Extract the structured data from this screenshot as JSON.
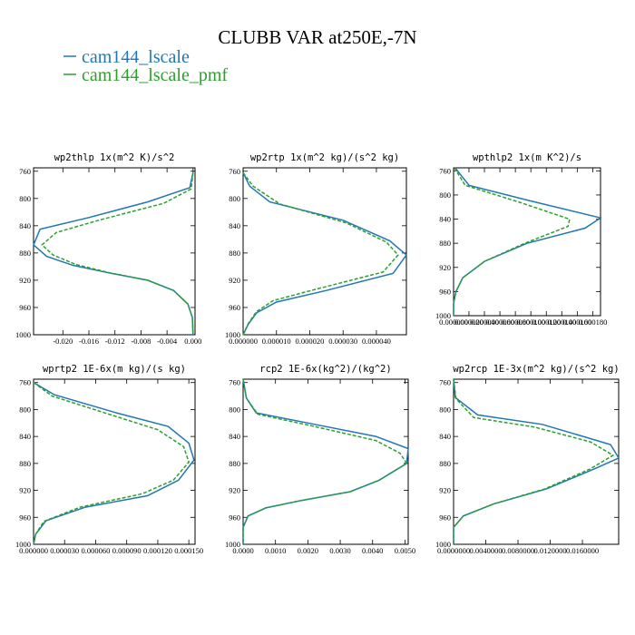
{
  "figure": {
    "title": "CLUBB VAR at250E,-7N",
    "legend": [
      {
        "name": "cam144_lscale",
        "color": "#1f77b4",
        "dash": "solid"
      },
      {
        "name": "cam144_lscale_pmf",
        "color": "#2ca02c",
        "dash": "dashed"
      }
    ]
  },
  "chart_data": [
    {
      "type": "line",
      "title": "wp2thlp  1x(m^2 K)/s^2",
      "y_levels": [
        760,
        800,
        840,
        880,
        920,
        960,
        1000
      ],
      "ylim": [
        1000,
        755
      ],
      "xlim": [
        -0.0245,
        0.0003
      ],
      "xticks": [
        -0.02,
        -0.016,
        -0.012,
        -0.008,
        -0.004,
        0.0
      ],
      "xtick_labels": [
        "-0.020",
        "-0.016",
        "-0.012",
        "-0.008",
        "-0.004",
        "0.000"
      ],
      "yticks": [
        760,
        800,
        840,
        880,
        920,
        960,
        1000
      ],
      "series": [
        {
          "name": "cam144_lscale",
          "color": "#1f77b4",
          "dash": "solid",
          "points": [
            [
              0.0,
              762
            ],
            [
              -0.0005,
              784
            ],
            [
              -0.007,
              805
            ],
            [
              -0.016,
              828
            ],
            [
              -0.0235,
              845
            ],
            [
              -0.0245,
              868
            ],
            [
              -0.0225,
              885
            ],
            [
              -0.0185,
              898
            ],
            [
              -0.013,
              909
            ],
            [
              -0.007,
              920
            ],
            [
              -0.003,
              935
            ],
            [
              -0.0008,
              955
            ],
            [
              -0.0001,
              975
            ],
            [
              0.0,
              1000
            ]
          ]
        },
        {
          "name": "cam144_lscale_pmf",
          "color": "#2ca02c",
          "dash": "dashed",
          "points": [
            [
              0.0,
              762
            ],
            [
              -0.0003,
              786
            ],
            [
              -0.0045,
              807
            ],
            [
              -0.0145,
              832
            ],
            [
              -0.021,
              850
            ],
            [
              -0.0232,
              868
            ],
            [
              -0.0215,
              883
            ],
            [
              -0.018,
              897
            ],
            [
              -0.0128,
              909
            ],
            [
              -0.007,
              920
            ],
            [
              -0.003,
              935
            ],
            [
              -0.0008,
              955
            ],
            [
              -0.0001,
              975
            ],
            [
              0.0,
              1000
            ]
          ]
        }
      ]
    },
    {
      "type": "line",
      "title": "wp2rtp  1x(m^2 kg)/(s^2 kg)",
      "y_levels": [
        760,
        800,
        840,
        880,
        920,
        960,
        1000
      ],
      "ylim": [
        1000,
        755
      ],
      "xlim": [
        0.0,
        4.9e-05
      ],
      "xticks": [
        0.0,
        1e-05,
        2e-05,
        3e-05,
        4e-05
      ],
      "xtick_labels": [
        "0.000000",
        "0.000010",
        "0.000020",
        "0.000030",
        "0.000040"
      ],
      "yticks": [
        760,
        800,
        840,
        880,
        920,
        960,
        1000
      ],
      "series": [
        {
          "name": "cam144_lscale",
          "color": "#1f77b4",
          "dash": "solid",
          "points": [
            [
              0.0,
              762
            ],
            [
              2e-06,
              782
            ],
            [
              8e-06,
              805
            ],
            [
              3e-05,
              832
            ],
            [
              4.4e-05,
              862
            ],
            [
              4.9e-05,
              883
            ],
            [
              4.5e-05,
              910
            ],
            [
              2.5e-05,
              935
            ],
            [
              1e-05,
              952
            ],
            [
              4e-06,
              968
            ],
            [
              1.5e-06,
              985
            ],
            [
              0.0,
              1000
            ]
          ]
        },
        {
          "name": "cam144_lscale_pmf",
          "color": "#2ca02c",
          "dash": "dashed",
          "points": [
            [
              0.0,
              762
            ],
            [
              3e-06,
              782
            ],
            [
              1.1e-05,
              808
            ],
            [
              3.1e-05,
              836
            ],
            [
              4.3e-05,
              864
            ],
            [
              4.65e-05,
              883
            ],
            [
              4.2e-05,
              908
            ],
            [
              2.2e-05,
              933
            ],
            [
              9e-06,
              950
            ],
            [
              4e-06,
              966
            ],
            [
              1.5e-06,
              984
            ],
            [
              0.0,
              1000
            ]
          ]
        }
      ]
    },
    {
      "type": "line",
      "title": "wpthlp2  1x(m K^2)/s",
      "y_levels": [
        760,
        800,
        840,
        880,
        920,
        960,
        1000
      ],
      "ylim": [
        1000,
        755
      ],
      "xlim": [
        0.0,
        0.00019
      ],
      "xticks": [
        0.0,
        1.99e-05,
        3.99e-05,
        5.99e-05,
        7.99e-05,
        9.99e-05,
        0.0001199,
        0.0001399,
        0.0001599,
        0.0001799
      ],
      "xtick_labels": [
        "0.000000",
        "0.000020",
        "0.000040",
        "0.000060",
        "0.000080",
        "0.000100",
        "0.000120",
        "0.000140",
        "0.000160",
        "0.000180"
      ],
      "yticks": [
        760,
        800,
        840,
        880,
        920,
        960,
        1000
      ],
      "series": [
        {
          "name": "cam144_lscale",
          "color": "#1f77b4",
          "dash": "solid",
          "points": [
            [
              2e-06,
              755
            ],
            [
              2e-05,
              784
            ],
            [
              0.0001,
              810
            ],
            [
              0.00019,
              838
            ],
            [
              0.00017,
              855
            ],
            [
              9.5e-05,
              880
            ],
            [
              4e-05,
              910
            ],
            [
              1.2e-05,
              937
            ],
            [
              3e-06,
              960
            ],
            [
              0.0,
              980
            ],
            [
              0.0,
              1000
            ]
          ]
        },
        {
          "name": "cam144_lscale_pmf",
          "color": "#2ca02c",
          "dash": "dashed",
          "points": [
            [
              1e-06,
              755
            ],
            [
              1.5e-05,
              784
            ],
            [
              8.5e-05,
              812
            ],
            [
              0.00015,
              840
            ],
            [
              0.000148,
              852
            ],
            [
              9.2e-05,
              880
            ],
            [
              4e-05,
              910
            ],
            [
              1.2e-05,
              937
            ],
            [
              3e-06,
              960
            ],
            [
              0.0,
              980
            ],
            [
              0.0,
              1000
            ]
          ]
        }
      ]
    },
    {
      "type": "line",
      "title": "wprtp2  1E-6x(m kg)/(s kg)",
      "y_levels": [
        760,
        800,
        840,
        880,
        920,
        960,
        1000
      ],
      "ylim": [
        1000,
        755
      ],
      "xlim": [
        0.0,
        0.000156
      ],
      "xticks": [
        0.0,
        2.99999e-05,
        5.99999e-05,
        8.99999e-05,
        0.0001199999,
        0.0001499999
      ],
      "xtick_labels": [
        "0.000000",
        "0.000030",
        "0.000060",
        "0.000090",
        "0.000120",
        "0.000150"
      ],
      "yticks": [
        760,
        800,
        840,
        880,
        920,
        960,
        1000
      ],
      "series": [
        {
          "name": "cam144_lscale",
          "color": "#1f77b4",
          "dash": "solid",
          "points": [
            [
              0.0,
              760
            ],
            [
              2e-05,
              778
            ],
            [
              8e-05,
              805
            ],
            [
              0.00013,
              825
            ],
            [
              0.00015,
              850
            ],
            [
              0.000155,
              875
            ],
            [
              0.00014,
              905
            ],
            [
              0.00011,
              928
            ],
            [
              5e-05,
              945
            ],
            [
              1.2e-05,
              965
            ],
            [
              2e-06,
              985
            ],
            [
              0.0,
              1000
            ]
          ]
        },
        {
          "name": "cam144_lscale_pmf",
          "color": "#2ca02c",
          "dash": "dashed",
          "points": [
            [
              0.0,
              760
            ],
            [
              1.8e-05,
              780
            ],
            [
              7.5e-05,
              808
            ],
            [
              0.00012,
              830
            ],
            [
              0.000145,
              855
            ],
            [
              0.00015,
              878
            ],
            [
              0.000135,
              905
            ],
            [
              0.000105,
              925
            ],
            [
              4.5e-05,
              945
            ],
            [
              1e-05,
              966
            ],
            [
              2e-06,
              985
            ],
            [
              0.0,
              1000
            ]
          ]
        }
      ]
    },
    {
      "type": "line",
      "title": "rcp2  1E-6x(kg^2)/(kg^2)",
      "y_levels": [
        760,
        800,
        840,
        880,
        920,
        960,
        1000
      ],
      "ylim": [
        1000,
        755
      ],
      "xlim": [
        0.0,
        0.0051
      ],
      "xticks": [
        0.0,
        0.001,
        0.002,
        0.003,
        0.004,
        0.005
      ],
      "xtick_labels": [
        "0.0000",
        "0.0010",
        "0.0020",
        "0.0030",
        "0.0040",
        "0.0050"
      ],
      "yticks": [
        760,
        800,
        840,
        880,
        920,
        960,
        1000
      ],
      "series": [
        {
          "name": "cam144_lscale",
          "color": "#1f77b4",
          "dash": "solid",
          "points": [
            [
              0.0,
              755
            ],
            [
              0.0001,
              783
            ],
            [
              0.0004,
              805
            ],
            [
              0.002,
              820
            ],
            [
              0.0041,
              840
            ],
            [
              0.0051,
              858
            ],
            [
              0.00505,
              880
            ],
            [
              0.0042,
              905
            ],
            [
              0.0033,
              922
            ],
            [
              0.0018,
              935
            ],
            [
              0.0007,
              946
            ],
            [
              0.00015,
              958
            ],
            [
              0.0,
              975
            ],
            [
              0.0,
              1000
            ]
          ]
        },
        {
          "name": "cam144_lscale_pmf",
          "color": "#2ca02c",
          "dash": "dashed",
          "points": [
            [
              0.0,
              755
            ],
            [
              0.0001,
              783
            ],
            [
              0.00045,
              807
            ],
            [
              0.0021,
              824
            ],
            [
              0.0041,
              846
            ],
            [
              0.00485,
              865
            ],
            [
              0.00505,
              880
            ],
            [
              0.0042,
              905
            ],
            [
              0.0033,
              922
            ],
            [
              0.0018,
              935
            ],
            [
              0.0007,
              946
            ],
            [
              0.00015,
              958
            ],
            [
              0.0,
              975
            ],
            [
              0.0,
              1000
            ]
          ]
        }
      ]
    },
    {
      "type": "line",
      "title": "wp2rcp  1E-3x(m^2 kg)/(s^2 kg)",
      "y_levels": [
        760,
        800,
        840,
        880,
        920,
        960,
        1000
      ],
      "ylim": [
        1000,
        755
      ],
      "xlim": [
        0.0,
        0.0205
      ],
      "xticks": [
        0.0,
        0.004,
        0.008,
        0.012,
        0.016
      ],
      "xtick_labels": [
        "0.0000000",
        "0.0040000",
        "0.0080000",
        "0.0120000",
        "0.0160000"
      ],
      "yticks": [
        760,
        800,
        840,
        880,
        920,
        960,
        1000
      ],
      "series": [
        {
          "name": "cam144_lscale",
          "color": "#1f77b4",
          "dash": "solid",
          "points": [
            [
              0.0,
              755
            ],
            [
              0.0002,
              782
            ],
            [
              0.003,
              808
            ],
            [
              0.011,
              822
            ],
            [
              0.0195,
              852
            ],
            [
              0.0205,
              872
            ],
            [
              0.0175,
              888
            ],
            [
              0.0115,
              918
            ],
            [
              0.005,
              940
            ],
            [
              0.0012,
              958
            ],
            [
              0.0,
              975
            ],
            [
              0.0,
              1000
            ]
          ]
        },
        {
          "name": "cam144_lscale_pmf",
          "color": "#2ca02c",
          "dash": "dashed",
          "points": [
            [
              0.0,
              755
            ],
            [
              0.0003,
              784
            ],
            [
              0.0025,
              812
            ],
            [
              0.01,
              826
            ],
            [
              0.017,
              848
            ],
            [
              0.0198,
              868
            ],
            [
              0.017,
              888
            ],
            [
              0.0113,
              918
            ],
            [
              0.005,
              940
            ],
            [
              0.0012,
              958
            ],
            [
              0.0,
              975
            ],
            [
              0.0,
              1000
            ]
          ]
        }
      ]
    }
  ]
}
